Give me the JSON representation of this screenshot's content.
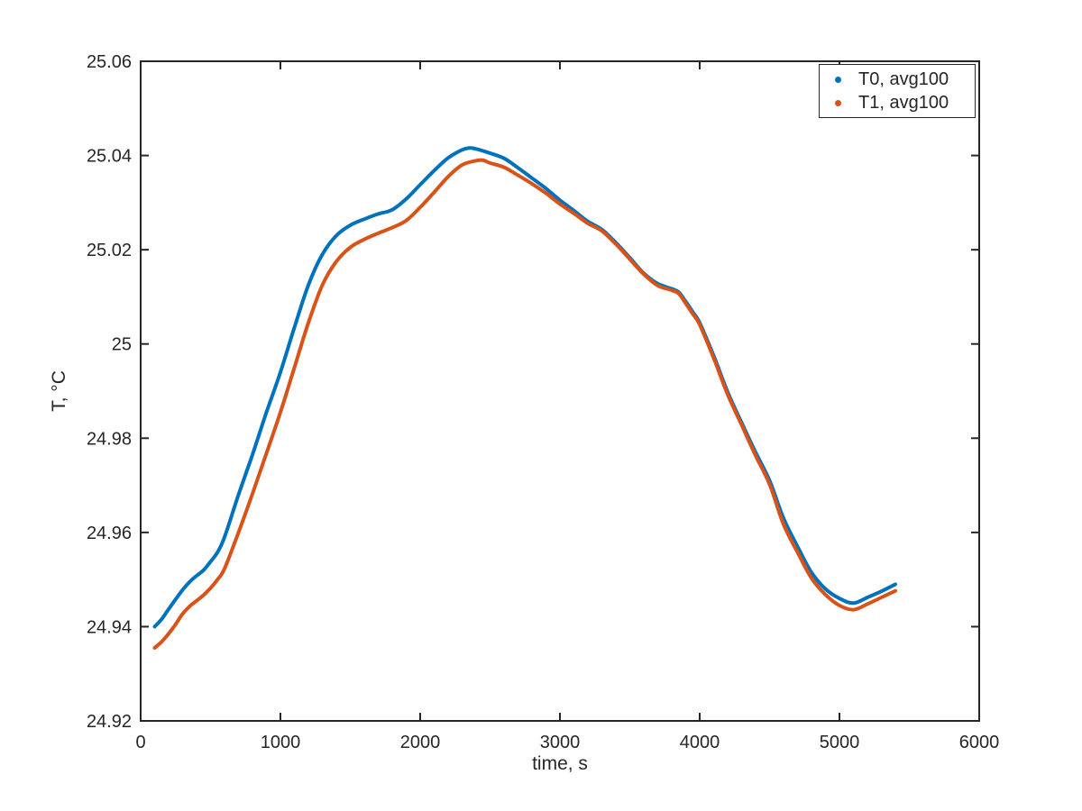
{
  "chart_data": {
    "type": "line",
    "title": "",
    "xlabel": "time, s",
    "ylabel": "T, °C",
    "xlim": [
      0,
      6000
    ],
    "ylim": [
      24.92,
      25.06
    ],
    "x_ticks": [
      0,
      1000,
      2000,
      3000,
      4000,
      5000,
      6000
    ],
    "x_tick_labels": [
      "0",
      "1000",
      "2000",
      "3000",
      "4000",
      "5000",
      "6000"
    ],
    "y_ticks": [
      24.92,
      24.94,
      24.96,
      24.98,
      25,
      25.02,
      25.04,
      25.06
    ],
    "y_tick_labels": [
      "24.92",
      "24.94",
      "24.96",
      "24.98",
      "25",
      "25.02",
      "25.04",
      "25.06"
    ],
    "grid": false,
    "axis_color": "#262626",
    "background_color": "#ffffff",
    "legend_position": "top-right",
    "marker": "dot",
    "series": [
      {
        "name": "T0, avg100",
        "color": "#0072BD",
        "points": [
          [
            100,
            24.94
          ],
          [
            150,
            24.9416
          ],
          [
            200,
            24.9437
          ],
          [
            250,
            24.9458
          ],
          [
            300,
            24.9478
          ],
          [
            350,
            24.9495
          ],
          [
            400,
            24.9508
          ],
          [
            450,
            24.952
          ],
          [
            500,
            24.9538
          ],
          [
            550,
            24.9558
          ],
          [
            600,
            24.959
          ],
          [
            700,
            24.968
          ],
          [
            800,
            24.9765
          ],
          [
            900,
            24.9855
          ],
          [
            1000,
            24.994
          ],
          [
            1100,
            25.0035
          ],
          [
            1200,
            25.0125
          ],
          [
            1300,
            25.019
          ],
          [
            1400,
            25.023
          ],
          [
            1500,
            25.0252
          ],
          [
            1600,
            25.0265
          ],
          [
            1700,
            25.0276
          ],
          [
            1800,
            25.0285
          ],
          [
            1900,
            25.0308
          ],
          [
            2000,
            25.0338
          ],
          [
            2100,
            25.0368
          ],
          [
            2200,
            25.0395
          ],
          [
            2300,
            25.0412
          ],
          [
            2350,
            25.0416
          ],
          [
            2400,
            25.0414
          ],
          [
            2500,
            25.0405
          ],
          [
            2600,
            25.0394
          ],
          [
            2700,
            25.0374
          ],
          [
            2800,
            25.0352
          ],
          [
            2900,
            25.033
          ],
          [
            3000,
            25.0305
          ],
          [
            3100,
            25.0283
          ],
          [
            3200,
            25.026
          ],
          [
            3300,
            25.0243
          ],
          [
            3400,
            25.0215
          ],
          [
            3500,
            25.0183
          ],
          [
            3600,
            25.015
          ],
          [
            3700,
            25.0128
          ],
          [
            3800,
            25.0117
          ],
          [
            3850,
            25.011
          ],
          [
            3900,
            25.009
          ],
          [
            3950,
            25.0068
          ],
          [
            4000,
            25.0045
          ],
          [
            4100,
            24.9975
          ],
          [
            4200,
            24.9898
          ],
          [
            4300,
            24.9833
          ],
          [
            4400,
            24.977
          ],
          [
            4500,
            24.971
          ],
          [
            4600,
            24.963
          ],
          [
            4700,
            24.957
          ],
          [
            4800,
            24.9515
          ],
          [
            4900,
            24.948
          ],
          [
            5000,
            24.946
          ],
          [
            5100,
            24.945
          ],
          [
            5200,
            24.9462
          ],
          [
            5300,
            24.9475
          ],
          [
            5400,
            24.949
          ]
        ]
      },
      {
        "name": "T1, avg100",
        "color": "#D95319",
        "points": [
          [
            100,
            24.9355
          ],
          [
            150,
            24.9368
          ],
          [
            200,
            24.9385
          ],
          [
            250,
            24.9405
          ],
          [
            300,
            24.9427
          ],
          [
            350,
            24.9443
          ],
          [
            400,
            24.9455
          ],
          [
            450,
            24.9467
          ],
          [
            500,
            24.9482
          ],
          [
            550,
            24.95
          ],
          [
            600,
            24.9523
          ],
          [
            700,
            24.96
          ],
          [
            800,
            24.9682
          ],
          [
            900,
            24.9768
          ],
          [
            1000,
            24.9855
          ],
          [
            1100,
            24.995
          ],
          [
            1200,
            25.0045
          ],
          [
            1300,
            25.0125
          ],
          [
            1400,
            25.0175
          ],
          [
            1500,
            25.0205
          ],
          [
            1600,
            25.0222
          ],
          [
            1700,
            25.0235
          ],
          [
            1800,
            25.0247
          ],
          [
            1900,
            25.0262
          ],
          [
            2000,
            25.029
          ],
          [
            2100,
            25.0322
          ],
          [
            2200,
            25.0355
          ],
          [
            2300,
            25.038
          ],
          [
            2400,
            25.0389
          ],
          [
            2450,
            25.039
          ],
          [
            2500,
            25.0384
          ],
          [
            2600,
            25.0375
          ],
          [
            2700,
            25.0358
          ],
          [
            2800,
            25.034
          ],
          [
            2900,
            25.032
          ],
          [
            3000,
            25.0297
          ],
          [
            3100,
            25.0277
          ],
          [
            3200,
            25.0256
          ],
          [
            3300,
            25.024
          ],
          [
            3400,
            25.0212
          ],
          [
            3500,
            25.018
          ],
          [
            3600,
            25.0148
          ],
          [
            3700,
            25.0124
          ],
          [
            3800,
            25.0114
          ],
          [
            3850,
            25.0107
          ],
          [
            3900,
            25.0086
          ],
          [
            3950,
            25.0064
          ],
          [
            4000,
            25.0041
          ],
          [
            4100,
            24.997
          ],
          [
            4200,
            24.9893
          ],
          [
            4300,
            24.9828
          ],
          [
            4400,
            24.9763
          ],
          [
            4500,
            24.9702
          ],
          [
            4600,
            24.9617
          ],
          [
            4700,
            24.9558
          ],
          [
            4800,
            24.9503
          ],
          [
            4900,
            24.9468
          ],
          [
            5000,
            24.9445
          ],
          [
            5100,
            24.9436
          ],
          [
            5200,
            24.9448
          ],
          [
            5300,
            24.9462
          ],
          [
            5400,
            24.9476
          ]
        ]
      }
    ]
  }
}
